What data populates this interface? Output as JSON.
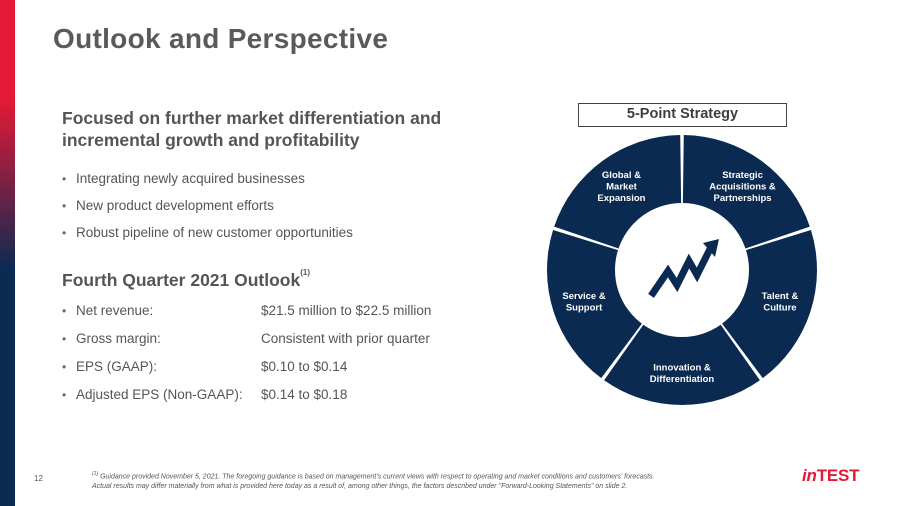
{
  "title": "Outlook and Perspective",
  "section1": {
    "heading": "Focused on further market differentiation and incremental growth and profitability",
    "bullets": [
      "Integrating newly acquired businesses",
      "New product development efforts",
      "Robust pipeline of new customer opportunities"
    ]
  },
  "section2": {
    "heading": "Fourth Quarter 2021 Outlook",
    "heading_sup": "(1)",
    "rows": [
      {
        "label": "Net revenue:",
        "value": "$21.5 million to $22.5 million"
      },
      {
        "label": "Gross margin:",
        "value": "Consistent with prior quarter"
      },
      {
        "label": "EPS (GAAP):",
        "value": "$0.10 to $0.14"
      },
      {
        "label": "Adjusted EPS (Non-GAAP):",
        "value": "$0.14 to $0.18"
      }
    ]
  },
  "strategy": {
    "box_label": "5-Point Strategy",
    "segments": [
      {
        "line1": "Strategic",
        "line2": "Acquisitions &",
        "line3": "Partnerships"
      },
      {
        "line1": "Talent &",
        "line2": "Culture",
        "line3": ""
      },
      {
        "line1": "Innovation &",
        "line2": "Differentiation",
        "line3": ""
      },
      {
        "line1": "Service &",
        "line2": "Support",
        "line3": ""
      },
      {
        "line1": "Global &",
        "line2": "Market",
        "line3": "Expansion"
      }
    ],
    "center_icon": "trending-up-arrow-icon"
  },
  "footer": {
    "page_number": "12",
    "footnote_sup": "(1)",
    "footnote_line1": "Guidance provided November 5, 2021. The foregoing guidance is based on management's current views with respect to operating and market conditions and customers' forecasts.",
    "footnote_line2": "Actual results may differ materially from what is provided here today as a result of, among other things, the factors described under \"Forward-Looking Statements\" on slide 2.",
    "logo_in": "in",
    "logo_test": "TEST"
  },
  "colors": {
    "brand_red": "#e41937",
    "navy": "#0b2a52",
    "text_gray": "#555555"
  }
}
